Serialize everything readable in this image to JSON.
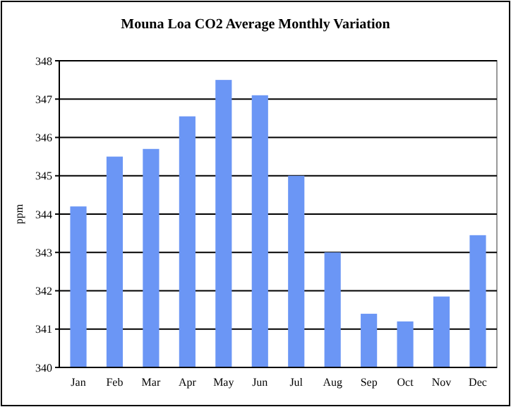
{
  "chart_data": {
    "type": "bar",
    "title": "Mouna Loa CO2 Average Monthly Variation",
    "ylabel": "ppm",
    "categories": [
      "Jan",
      "Feb",
      "Mar",
      "Apr",
      "May",
      "Jun",
      "Jul",
      "Aug",
      "Sep",
      "Oct",
      "Nov",
      "Dec"
    ],
    "values": [
      344.2,
      345.5,
      345.7,
      346.55,
      347.5,
      347.1,
      345.0,
      343.0,
      341.4,
      341.2,
      341.85,
      343.45
    ],
    "color": "#6b96f5",
    "ylim": [
      340,
      348
    ],
    "yticks": [
      340,
      341,
      342,
      343,
      344,
      345,
      346,
      347,
      348
    ],
    "grid": "y"
  }
}
